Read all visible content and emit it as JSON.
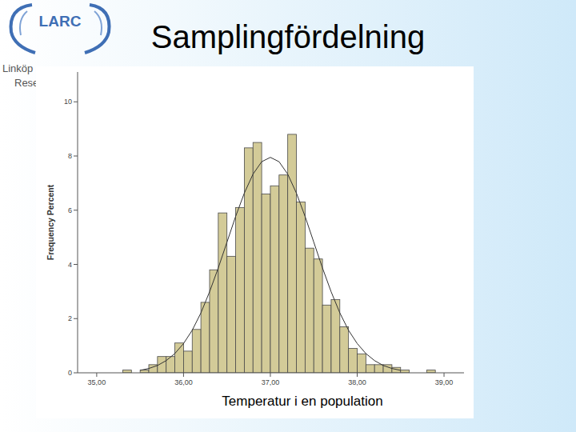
{
  "logo": {
    "text": "LARC",
    "lines": [
      "Linköp",
      "Rese"
    ]
  },
  "chart_data": {
    "type": "histogram",
    "title": "Samplingfördelning",
    "x_label": "Temperatur i en population",
    "y_label": "Frequency Percent",
    "bins": [
      35.3,
      35.4,
      35.5,
      35.6,
      35.7,
      35.8,
      35.9,
      36.0,
      36.1,
      36.2,
      36.3,
      36.4,
      36.5,
      36.6,
      36.7,
      36.8,
      36.9,
      37.0,
      37.1,
      37.2,
      37.3,
      37.4,
      37.5,
      37.6,
      37.7,
      37.8,
      37.9,
      38.0,
      38.1,
      38.2,
      38.3,
      38.4,
      38.5,
      38.6,
      38.7,
      38.8,
      38.9
    ],
    "values": [
      0.1,
      0,
      0.1,
      0.3,
      0.6,
      0.6,
      1.1,
      0.8,
      1.6,
      2.6,
      3.8,
      5.9,
      4.3,
      6.1,
      8.3,
      8.5,
      6.6,
      6.9,
      7.3,
      8.8,
      6.3,
      4.6,
      4.2,
      2.5,
      2.7,
      1.7,
      0.9,
      0.7,
      0.3,
      0.3,
      0.3,
      0.2,
      0.1,
      0,
      0,
      0.1
    ],
    "color": "#d3cb98",
    "series": [
      {
        "type": "line",
        "color": "#333333",
        "line_style": "solid",
        "x": [
          35.5,
          35.6,
          35.7,
          35.8,
          35.9,
          36.0,
          36.1,
          36.2,
          36.3,
          36.4,
          36.5,
          36.6,
          36.7,
          36.8,
          36.9,
          37.0,
          37.1,
          37.2,
          37.3,
          37.4,
          37.5,
          37.6,
          37.7,
          37.8,
          37.9,
          38.0,
          38.1,
          38.2,
          38.3,
          38.4,
          38.5
        ],
        "values": [
          0.09,
          0.16,
          0.27,
          0.45,
          0.71,
          1.08,
          1.57,
          2.21,
          2.99,
          3.87,
          4.82,
          5.77,
          6.63,
          7.33,
          7.79,
          7.95,
          7.79,
          7.33,
          6.63,
          5.77,
          4.82,
          3.87,
          2.99,
          2.21,
          1.57,
          1.08,
          0.71,
          0.45,
          0.27,
          0.16,
          0.09
        ]
      }
    ],
    "xlim": [
      34.78,
      39.23
    ],
    "xticks": [
      {
        "value": 35,
        "label": "35,00"
      },
      {
        "value": 36,
        "label": "36,00"
      },
      {
        "value": 37,
        "label": "37,00"
      },
      {
        "value": 38,
        "label": "38,00"
      },
      {
        "value": 39,
        "label": "39,00"
      }
    ],
    "ylim": [
      0,
      11.1
    ],
    "yticks": [
      0,
      2,
      4,
      6,
      8,
      10
    ],
    "grid": false
  }
}
